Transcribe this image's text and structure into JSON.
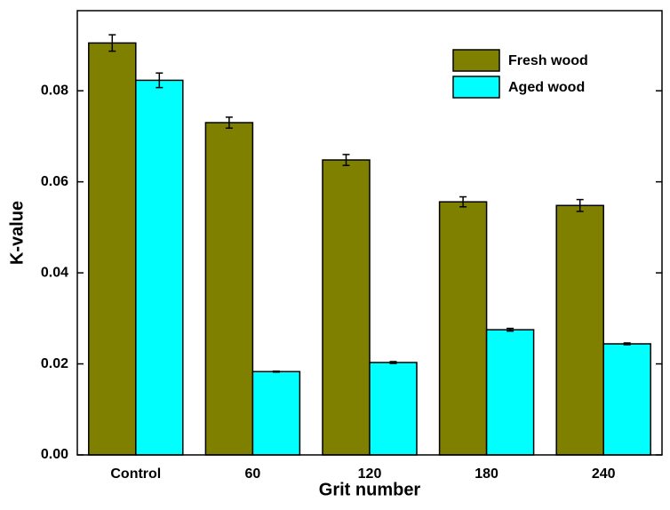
{
  "chart_data": {
    "type": "bar",
    "x_label": "Grit number",
    "y_label": "K-value",
    "categories": [
      "Control",
      "60",
      "120",
      "180",
      "240"
    ],
    "series": [
      {
        "name": "Fresh wood",
        "color": "#808000",
        "values": [
          0.0905,
          0.073,
          0.0648,
          0.0556,
          0.0548
        ],
        "errors": [
          0.0018,
          0.0012,
          0.0012,
          0.0011,
          0.0013
        ]
      },
      {
        "name": "Aged wood",
        "color": "#00ffff",
        "values": [
          0.0823,
          0.0183,
          0.0203,
          0.0275,
          0.0244
        ],
        "errors": [
          0.0016,
          0.0001,
          0.0002,
          0.0003,
          0.0002
        ]
      }
    ],
    "ylim": [
      0,
      0.0976
    ],
    "yticks": [
      {
        "value": 0,
        "label": "0.00"
      },
      {
        "value": 0.02,
        "label": "0.02"
      },
      {
        "value": 0.04,
        "label": "0.04"
      },
      {
        "value": 0.06,
        "label": "0.06"
      },
      {
        "value": 0.08,
        "label": "0.08"
      }
    ],
    "legend": "upper right"
  }
}
